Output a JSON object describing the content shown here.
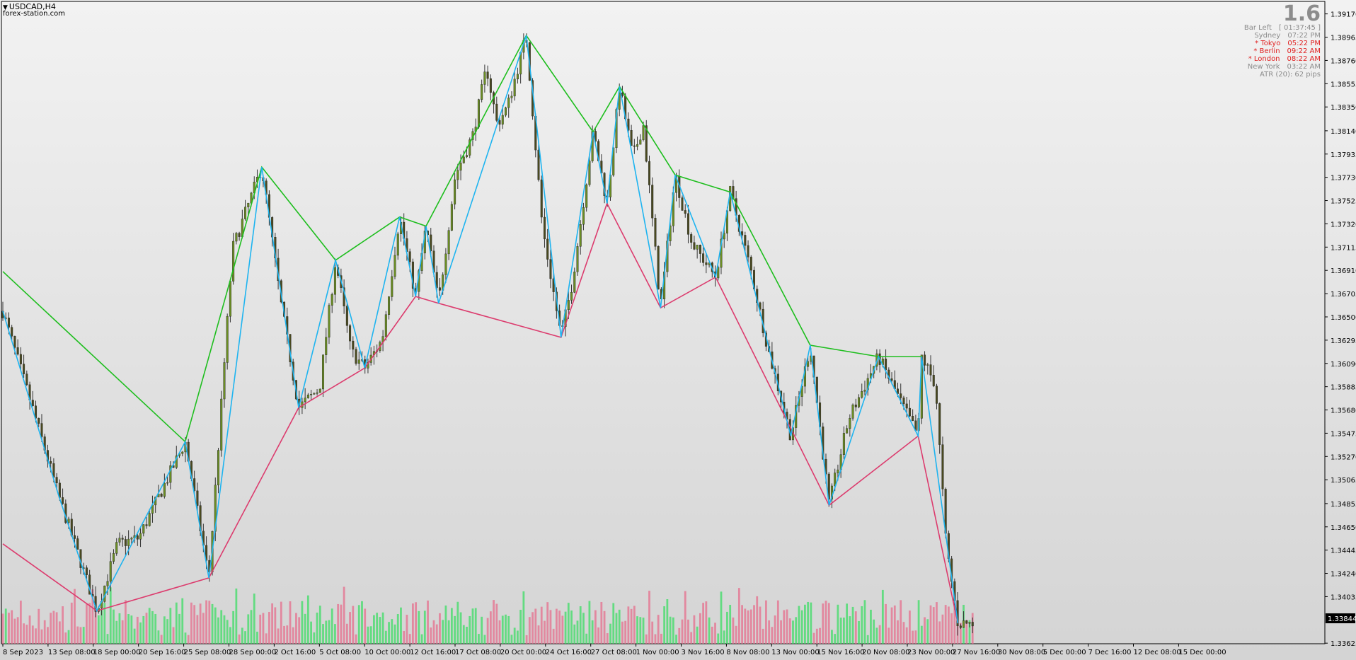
{
  "header": {
    "symbol": "USDCAD,H4",
    "website": "forex-station.com",
    "big_value": "1.6"
  },
  "info_panel": [
    {
      "label": "Bar Left",
      "value": "[ 01:37:45 ]",
      "color": "#8c8c8c"
    },
    {
      "label": "Sydney",
      "value": "07:22 PM",
      "color": "#8c8c8c"
    },
    {
      "label": "* Tokyo",
      "value": "05:22 PM",
      "color": "#e02020"
    },
    {
      "label": "* Berlin",
      "value": "09:22 AM",
      "color": "#e02020"
    },
    {
      "label": "* London",
      "value": "08:22 AM",
      "color": "#e02020"
    },
    {
      "label": "New York",
      "value": "03:22 AM",
      "color": "#8c8c8c"
    },
    {
      "label": "",
      "value": "ATR (20): 62 pips",
      "color": "#8c8c8c"
    }
  ],
  "colors": {
    "candle_up": "#6b8e23",
    "candle_down": "#4a4a20",
    "zigzag": "#1eb4f0",
    "upper_line": "#1ebe1e",
    "lower_line": "#dc3c6e",
    "volume_up": "#3cdc64",
    "volume_down": "#e66e8c",
    "price_label_bg": "#000000"
  },
  "chart_data": {
    "type": "candlestick",
    "title": "USDCAD,H4",
    "ylim": [
      1.3362,
      1.3928
    ],
    "y_ticks": [
      "1.39170",
      "1.38965",
      "1.38760",
      "1.38555",
      "1.38350",
      "1.38140",
      "1.37935",
      "1.37730",
      "1.37525",
      "1.37320",
      "1.37115",
      "1.36910",
      "1.36705",
      "1.36500",
      "1.36295",
      "1.36090",
      "1.35885",
      "1.35680",
      "1.35475",
      "1.35270",
      "1.35065",
      "1.34855",
      "1.34650",
      "1.34445",
      "1.34240",
      "1.34035",
      "1.33625"
    ],
    "current_price": "1.33844",
    "x_labels": [
      "8 Sep 2023",
      "13 Sep 08:00",
      "18 Sep 00:00",
      "20 Sep 16:00",
      "25 Sep 08:00",
      "28 Sep 00:00",
      "2 Oct 16:00",
      "5 Oct 08:00",
      "10 Oct 00:00",
      "12 Oct 16:00",
      "17 Oct 08:00",
      "20 Oct 00:00",
      "24 Oct 16:00",
      "27 Oct 08:00",
      "1 Nov 00:00",
      "3 Nov 16:00",
      "8 Nov 08:00",
      "13 Nov 00:00",
      "15 Nov 16:00",
      "20 Nov 08:00",
      "23 Nov 00:00",
      "27 Nov 16:00",
      "30 Nov 08:00",
      "5 Dec 00:00",
      "7 Dec 16:00",
      "12 Dec 08:00",
      "15 Dec 00:00"
    ],
    "x_range": [
      0,
      1395
    ],
    "anchors": [
      [
        0,
        1.3655
      ],
      [
        40,
        1.3575
      ],
      [
        80,
        1.3493
      ],
      [
        135,
        1.3391
      ],
      [
        165,
        1.345
      ],
      [
        195,
        1.3455
      ],
      [
        262,
        1.354
      ],
      [
        296,
        1.342
      ],
      [
        330,
        1.371
      ],
      [
        372,
        1.3782
      ],
      [
        400,
        1.366
      ],
      [
        425,
        1.357
      ],
      [
        455,
        1.3587
      ],
      [
        478,
        1.37
      ],
      [
        500,
        1.362
      ],
      [
        520,
        1.3605
      ],
      [
        545,
        1.363
      ],
      [
        570,
        1.3738
      ],
      [
        593,
        1.3668
      ],
      [
        608,
        1.373
      ],
      [
        626,
        1.3662
      ],
      [
        650,
        1.3775
      ],
      [
        675,
        1.381
      ],
      [
        695,
        1.387
      ],
      [
        710,
        1.382
      ],
      [
        725,
        1.3835
      ],
      [
        752,
        1.3898
      ],
      [
        775,
        1.373
      ],
      [
        802,
        1.3632
      ],
      [
        818,
        1.368
      ],
      [
        848,
        1.3813
      ],
      [
        868,
        1.375
      ],
      [
        886,
        1.3853
      ],
      [
        905,
        1.379
      ],
      [
        920,
        1.382
      ],
      [
        945,
        1.3658
      ],
      [
        966,
        1.3775
      ],
      [
        990,
        1.3715
      ],
      [
        1024,
        1.3685
      ],
      [
        1045,
        1.376
      ],
      [
        1075,
        1.369
      ],
      [
        1100,
        1.362
      ],
      [
        1132,
        1.3545
      ],
      [
        1160,
        1.3625
      ],
      [
        1187,
        1.3484
      ],
      [
        1215,
        1.356
      ],
      [
        1258,
        1.3615
      ],
      [
        1290,
        1.3575
      ],
      [
        1315,
        1.3545
      ],
      [
        1320,
        1.3615
      ],
      [
        1340,
        1.359
      ],
      [
        1355,
        1.345
      ],
      [
        1372,
        1.338
      ]
    ],
    "zigzag": [
      [
        0,
        1.3655
      ],
      [
        80,
        1.3493
      ],
      [
        135,
        1.3391
      ],
      [
        262,
        1.354
      ],
      [
        296,
        1.342
      ],
      [
        372,
        1.3782
      ],
      [
        425,
        1.357
      ],
      [
        478,
        1.37
      ],
      [
        520,
        1.3605
      ],
      [
        570,
        1.3738
      ],
      [
        593,
        1.3668
      ],
      [
        608,
        1.373
      ],
      [
        626,
        1.3662
      ],
      [
        752,
        1.3898
      ],
      [
        802,
        1.3632
      ],
      [
        848,
        1.3813
      ],
      [
        868,
        1.375
      ],
      [
        886,
        1.3853
      ],
      [
        945,
        1.3658
      ],
      [
        966,
        1.3775
      ],
      [
        1024,
        1.3685
      ],
      [
        1045,
        1.376
      ],
      [
        1132,
        1.3545
      ],
      [
        1160,
        1.3625
      ],
      [
        1187,
        1.3484
      ],
      [
        1258,
        1.3615
      ],
      [
        1315,
        1.3545
      ],
      [
        1320,
        1.3615
      ],
      [
        1372,
        1.338
      ]
    ],
    "upper_line": [
      [
        0,
        1.369
      ],
      [
        262,
        1.354
      ],
      [
        372,
        1.3782
      ],
      [
        478,
        1.37
      ],
      [
        570,
        1.3738
      ],
      [
        608,
        1.373
      ],
      [
        752,
        1.3898
      ],
      [
        848,
        1.3813
      ],
      [
        886,
        1.3853
      ],
      [
        966,
        1.3775
      ],
      [
        1045,
        1.376
      ],
      [
        1160,
        1.3625
      ],
      [
        1258,
        1.3615
      ],
      [
        1320,
        1.3615
      ]
    ],
    "lower_line": [
      [
        0,
        1.345
      ],
      [
        135,
        1.3391
      ],
      [
        296,
        1.342
      ],
      [
        425,
        1.357
      ],
      [
        520,
        1.3605
      ],
      [
        593,
        1.3668
      ],
      [
        626,
        1.3662
      ],
      [
        802,
        1.3632
      ],
      [
        868,
        1.375
      ],
      [
        945,
        1.3658
      ],
      [
        1024,
        1.3685
      ],
      [
        1187,
        1.3484
      ],
      [
        1315,
        1.3545
      ],
      [
        1372,
        1.338
      ]
    ],
    "volume_max": 1.0
  }
}
